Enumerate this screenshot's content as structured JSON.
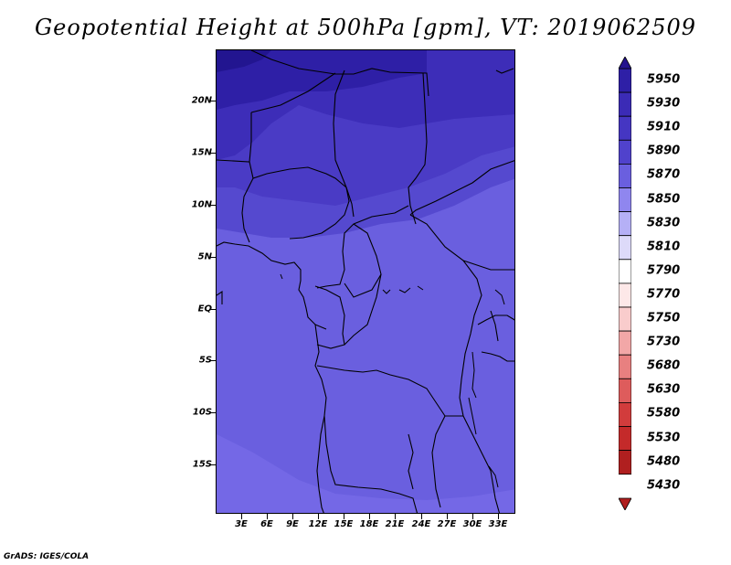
{
  "title": "Geopotential Height at 500hPa [gpm], VT: 2019062509",
  "credit": "GrADS: IGES/COLA",
  "map": {
    "lat_labels": [
      "20N",
      "15N",
      "10N",
      "5N",
      "EQ",
      "5S",
      "10S",
      "15S"
    ],
    "lon_labels": [
      "3E",
      "6E",
      "9E",
      "12E",
      "15E",
      "18E",
      "21E",
      "24E",
      "27E",
      "30E",
      "33E"
    ],
    "field_colors": {
      "5850": "#6a5fdf",
      "5870": "#5549cf",
      "5890": "#4a3bc5",
      "5910": "#3d2db8",
      "5930": "#2e1fa6",
      "5950": "#221590"
    }
  },
  "colorbar": {
    "labels": [
      "5950",
      "5930",
      "5910",
      "5890",
      "5870",
      "5850",
      "5830",
      "5810",
      "5790",
      "5770",
      "5750",
      "5730",
      "5680",
      "5630",
      "5580",
      "5530",
      "5480",
      "5430"
    ],
    "colors": [
      "#24138e",
      "#2e1fa6",
      "#3b2bb6",
      "#4536c2",
      "#5042cc",
      "#6a5fdf",
      "#8f86ef",
      "#b5b0f6",
      "#dddaf9",
      "#ffffff",
      "#fde8e8",
      "#f9cccc",
      "#f2a7a7",
      "#e88080",
      "#de5c5c",
      "#d23c3c",
      "#c42a2a",
      "#b01f1f"
    ]
  }
}
